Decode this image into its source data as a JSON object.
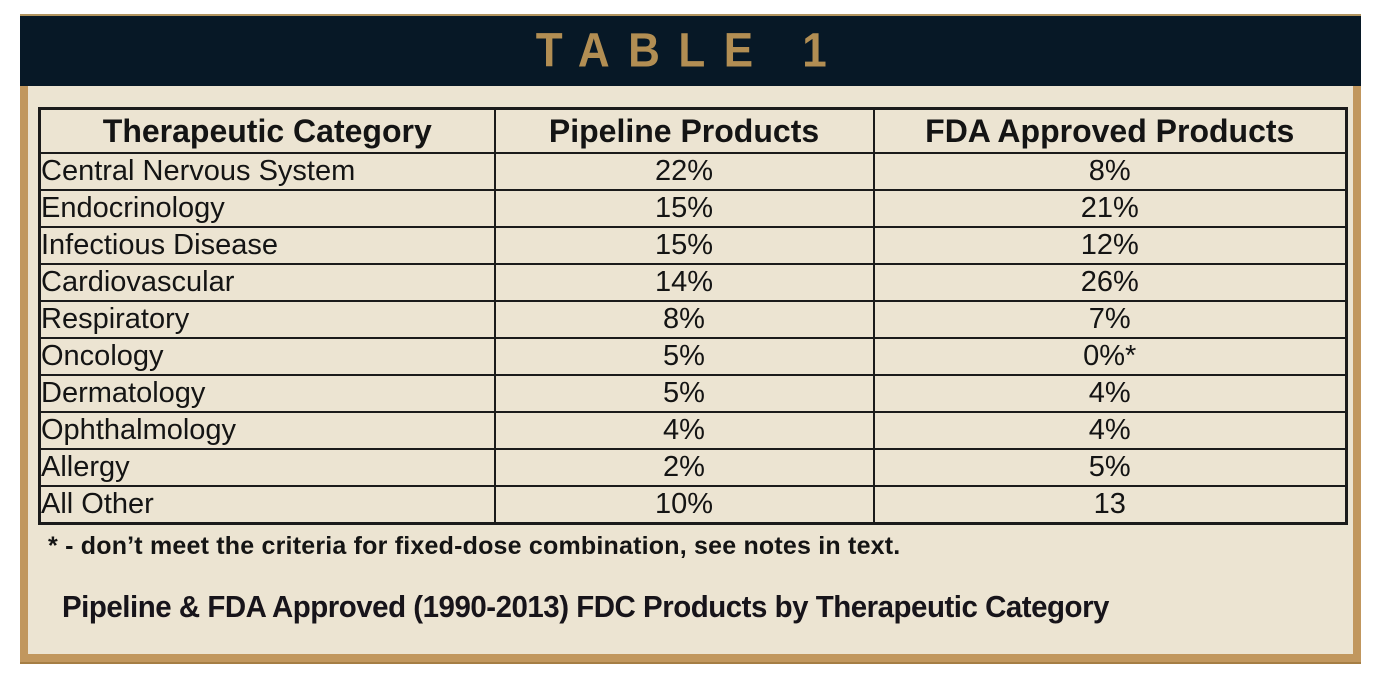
{
  "banner": {
    "title": "TABLE 1"
  },
  "table": {
    "columns": [
      "Therapeutic Category",
      "Pipeline Products",
      "FDA Approved Products"
    ],
    "rows": [
      [
        "Central Nervous System",
        "22%",
        "8%"
      ],
      [
        "Endocrinology",
        "15%",
        "21%"
      ],
      [
        "Infectious Disease",
        "15%",
        "12%"
      ],
      [
        "Cardiovascular",
        "14%",
        "26%"
      ],
      [
        "Respiratory",
        "8%",
        "7%"
      ],
      [
        "Oncology",
        "5%",
        "0%*"
      ],
      [
        "Dermatology",
        "5%",
        "4%"
      ],
      [
        "Ophthalmology",
        "4%",
        "4%"
      ],
      [
        "Allergy",
        "2%",
        "5%"
      ],
      [
        "All Other",
        "10%",
        "13"
      ]
    ]
  },
  "footnote": "* - don’t meet the criteria for fixed-dose combination, see notes in text.",
  "caption": "Pipeline & FDA Approved (1990-2013) FDC Products by Therapeutic Category",
  "colors": {
    "banner_background": "#071826",
    "banner_title": "#b28e53",
    "frame_gold": "#c1975e",
    "panel_cream": "#ece4d2",
    "table_line": "#1b1b1b",
    "text": "#141414"
  }
}
